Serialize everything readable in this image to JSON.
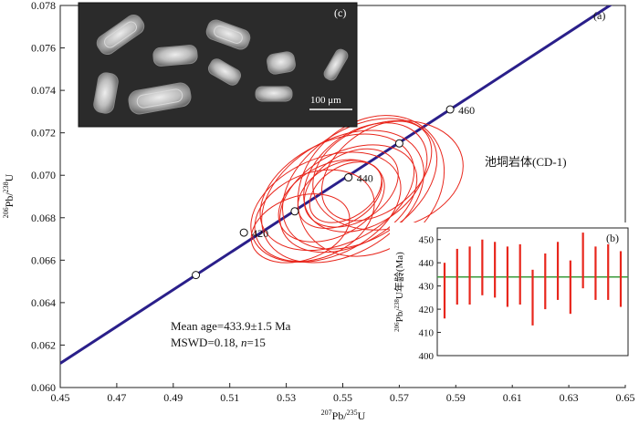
{
  "chart_data": {
    "type": "scatter",
    "panel_a": {
      "label": "(a)",
      "xlabel_sup": "207",
      "xlabel_main": "Pb/",
      "xlabel_sup2": "235",
      "xlabel_end": "U",
      "ylabel_sup": "206",
      "ylabel_main": "Pb/",
      "ylabel_sup2": "238",
      "ylabel_end": "U",
      "xlim": [
        0.45,
        0.65
      ],
      "ylim": [
        0.06,
        0.078
      ],
      "xticks": [
        "0.45",
        "0.47",
        "0.49",
        "0.51",
        "0.53",
        "0.55",
        "0.57",
        "0.59",
        "0.61",
        "0.63",
        "0.65"
      ],
      "yticks": [
        "0.060",
        "0.062",
        "0.064",
        "0.066",
        "0.068",
        "0.070",
        "0.072",
        "0.074",
        "0.076",
        "0.078"
      ],
      "concordia_color": "#2a1f8a",
      "ellipse_color": "#e8261c",
      "concordia_points": [
        {
          "x": 0.498,
          "y": 0.0653,
          "label": ""
        },
        {
          "x": 0.515,
          "y": 0.0673,
          "label": "420"
        },
        {
          "x": 0.533,
          "y": 0.0683,
          "label": ""
        },
        {
          "x": 0.552,
          "y": 0.0699,
          "label": "440"
        },
        {
          "x": 0.57,
          "y": 0.0715,
          "label": ""
        },
        {
          "x": 0.588,
          "y": 0.0731,
          "label": "460"
        }
      ],
      "sample_label": "池垌岩体(CD-1)",
      "annotation_line1": "Mean age=433.9±1.5 Ma",
      "annotation_line2_prefix": "MSWD=0.18, ",
      "annotation_line2_n": "n",
      "annotation_line2_suffix": "=15"
    },
    "panel_b": {
      "label": "(b)",
      "ylabel_sup": "206",
      "ylabel_main": "Pb/",
      "ylabel_sup2": "238",
      "ylabel_end": "U年龄(Ma)",
      "ylim": [
        400,
        455
      ],
      "yticks": [
        "400",
        "410",
        "420",
        "430",
        "440",
        "450"
      ],
      "mean": 433.9,
      "mean_color": "#3a9a3a",
      "bar_color": "#e8261c",
      "bars": [
        {
          "low": 416,
          "high": 440
        },
        {
          "low": 422,
          "high": 446
        },
        {
          "low": 422,
          "high": 447
        },
        {
          "low": 426,
          "high": 450
        },
        {
          "low": 425,
          "high": 449
        },
        {
          "low": 421,
          "high": 447
        },
        {
          "low": 422,
          "high": 448
        },
        {
          "low": 413,
          "high": 437
        },
        {
          "low": 420,
          "high": 444
        },
        {
          "low": 424,
          "high": 449
        },
        {
          "low": 418,
          "high": 441
        },
        {
          "low": 429,
          "high": 453
        },
        {
          "low": 424,
          "high": 447
        },
        {
          "low": 424,
          "high": 448
        },
        {
          "low": 421,
          "high": 445
        }
      ]
    },
    "panel_c": {
      "label": "(c)",
      "scale_label": "100 μm"
    }
  }
}
